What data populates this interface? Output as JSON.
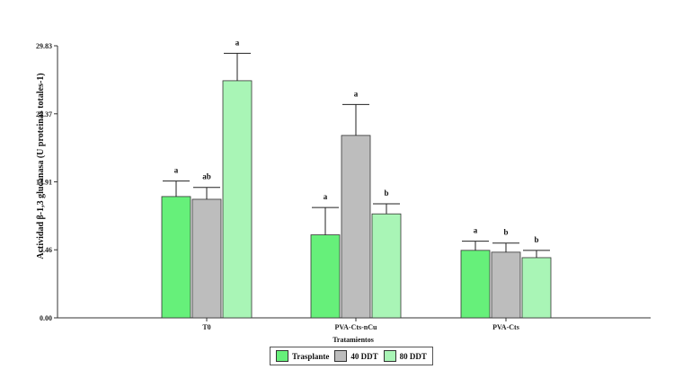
{
  "chart_data": {
    "type": "bar",
    "title": "",
    "xlabel": "Tratamientos",
    "ylabel": "Actividad β-1,3 glucanasa  (U proteinas totales-1)",
    "ylim": [
      0,
      29.83
    ],
    "yticks": [
      "0.00",
      "7.46",
      "14.91",
      "22.37",
      "29.83"
    ],
    "categories": [
      "T0",
      "PVA-Cts-nCu",
      "PVA-Cts"
    ],
    "series": [
      {
        "name": "Trasplante",
        "color": "#66f07a",
        "values": [
          13.3,
          9.1,
          7.4
        ],
        "errors": [
          1.7,
          3.0,
          1.0
        ],
        "letters": [
          "a",
          "a",
          "a"
        ]
      },
      {
        "name": "40 DDT",
        "color": "#bdbdbd",
        "values": [
          13.0,
          20.0,
          7.2
        ],
        "errors": [
          1.3,
          3.4,
          1.0
        ],
        "letters": [
          "ab",
          "a",
          "b"
        ]
      },
      {
        "name": "80 DDT",
        "color": "#a9f5b6",
        "values": [
          26.0,
          11.4,
          6.6
        ],
        "errors": [
          3.0,
          1.1,
          0.8
        ],
        "letters": [
          "a",
          "b",
          "b"
        ]
      }
    ],
    "legend_position": "bottom"
  }
}
